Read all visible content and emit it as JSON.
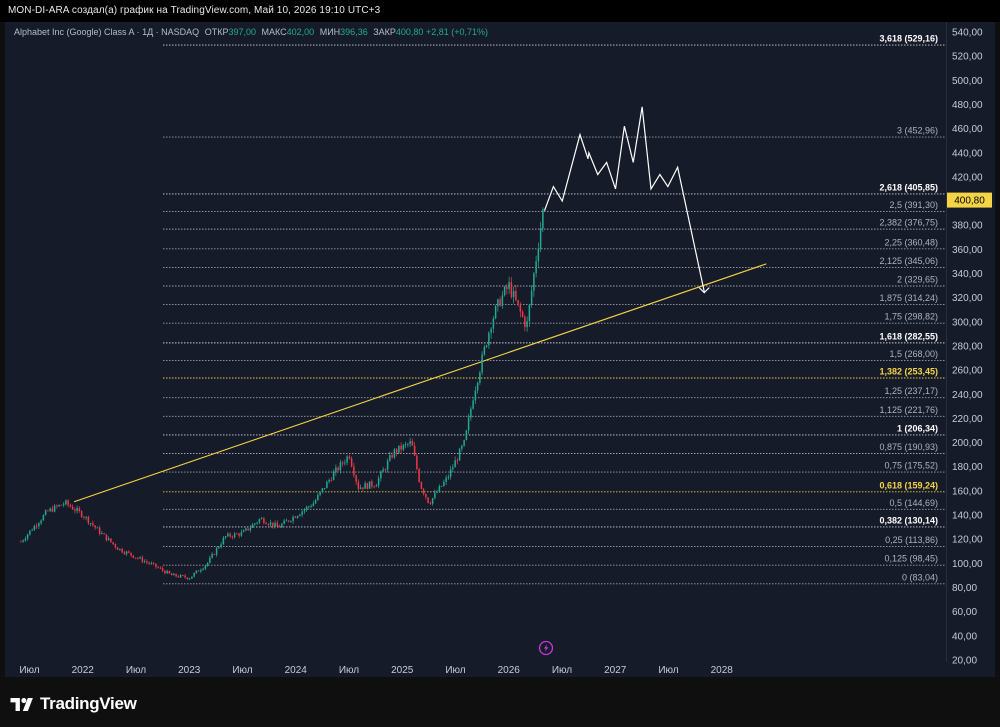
{
  "header": {
    "caption": "MON-DI-ARA создал(а) график на TradingView.com, Май 10, 2026 19:10 UTC+3"
  },
  "symbol": {
    "name": "Alphabet Inc (Google) Class A · 1Д · NASDAQ",
    "open_label": "ОТКР",
    "open": "397,00",
    "high_label": "МАКС",
    "high": "402,00",
    "low_label": "МИН",
    "low": "396,36",
    "close_label": "ЗАКР",
    "close": "400,80",
    "change": "+2,81 (+0,71%)"
  },
  "brand": {
    "name": "TradingView"
  },
  "colors": {
    "up": "#22ab94",
    "down": "#f23645",
    "trend": "#f5d547",
    "fib_white": "#ffffff",
    "fib_gold": "#f5d547",
    "price_tag": "#f5d547"
  },
  "chart_data": {
    "type": "candlestick",
    "y_scale": "linear",
    "ylim": [
      20,
      545
    ],
    "x_ticks": [
      "Июл",
      "2022",
      "Июл",
      "2023",
      "Июл",
      "2024",
      "Июл",
      "2025",
      "Июл",
      "2026",
      "Июл",
      "2027",
      "Июл",
      "2028"
    ],
    "y_ticks": [
      "540,00",
      "520,00",
      "500,00",
      "480,00",
      "460,00",
      "440,00",
      "420,00",
      "400,00",
      "380,00",
      "360,00",
      "340,00",
      "320,00",
      "300,00",
      "280,00",
      "260,00",
      "240,00",
      "220,00",
      "200,00",
      "180,00",
      "160,00",
      "140,00",
      "120,00",
      "100,00",
      "80,00",
      "60,00",
      "40,00",
      "20,00"
    ],
    "last_price": "400,80",
    "price_anchors": [
      [
        "2021-06",
        118
      ],
      [
        "2021-09",
        143
      ],
      [
        "2021-11",
        150
      ],
      [
        "2022-01",
        140
      ],
      [
        "2022-03",
        125
      ],
      [
        "2022-05",
        112
      ],
      [
        "2022-07",
        105
      ],
      [
        "2022-09",
        98
      ],
      [
        "2022-11",
        90
      ],
      [
        "2023-01",
        88
      ],
      [
        "2023-03",
        100
      ],
      [
        "2023-05",
        122
      ],
      [
        "2023-07",
        125
      ],
      [
        "2023-09",
        137
      ],
      [
        "2023-11",
        130
      ],
      [
        "2024-01",
        140
      ],
      [
        "2024-03",
        150
      ],
      [
        "2024-05",
        172
      ],
      [
        "2024-07",
        190
      ],
      [
        "2024-08",
        163
      ],
      [
        "2024-10",
        166
      ],
      [
        "2024-12",
        192
      ],
      [
        "2025-02",
        200
      ],
      [
        "2025-03",
        165
      ],
      [
        "2025-04",
        150
      ],
      [
        "2025-06",
        170
      ],
      [
        "2025-08",
        200
      ],
      [
        "2025-09",
        240
      ],
      [
        "2025-11",
        300
      ],
      [
        "2025-12",
        318
      ],
      [
        "2026-01",
        330
      ],
      [
        "2026-02",
        312
      ],
      [
        "2026-03",
        296
      ],
      [
        "2026-04",
        350
      ],
      [
        "2026-05",
        400.8
      ]
    ],
    "trendline": {
      "from": [
        "2021-12",
        151
      ],
      "to": [
        "2028-06",
        348
      ]
    },
    "projection": [
      [
        "2026-05",
        392
      ],
      [
        "2026-06",
        412
      ],
      [
        "2026-07",
        400
      ],
      [
        "2026-09",
        455
      ],
      [
        "2026-09",
        435
      ],
      [
        "2026-10",
        440
      ],
      [
        "2026-11",
        422
      ],
      [
        "2026-12",
        432
      ],
      [
        "2027-01",
        410
      ],
      [
        "2027-02",
        462
      ],
      [
        "2027-03",
        432
      ],
      [
        "2027-04",
        478
      ],
      [
        "2027-05",
        410
      ],
      [
        "2027-06",
        422
      ],
      [
        "2027-06",
        412
      ],
      [
        "2027-08",
        428
      ],
      [
        "2027-11",
        325
      ]
    ],
    "fib_levels": [
      {
        "label": "3,618 (529,16)",
        "price": 529.16,
        "style": "strong"
      },
      {
        "label": "3 (452,96)",
        "price": 452.96,
        "style": "dim"
      },
      {
        "label": "2,618 (405,85)",
        "price": 405.85,
        "style": "strong"
      },
      {
        "label": "2,5 (391,30)",
        "price": 391.3,
        "style": "dim"
      },
      {
        "label": "2,382 (376,75)",
        "price": 376.75,
        "style": "dim"
      },
      {
        "label": "2,25 (360,48)",
        "price": 360.48,
        "style": "dim"
      },
      {
        "label": "2,125 (345,06)",
        "price": 345.06,
        "style": "dim"
      },
      {
        "label": "2 (329,65)",
        "price": 329.65,
        "style": "dim"
      },
      {
        "label": "1,875 (314,24)",
        "price": 314.24,
        "style": "dim"
      },
      {
        "label": "1,75 (298,82)",
        "price": 298.82,
        "style": "dim"
      },
      {
        "label": "1,618 (282,55)",
        "price": 282.55,
        "style": "strong"
      },
      {
        "label": "1,5 (268,00)",
        "price": 268.0,
        "style": "dim"
      },
      {
        "label": "1,382 (253,45)",
        "price": 253.45,
        "style": "gold"
      },
      {
        "label": "1,25 (237,17)",
        "price": 237.17,
        "style": "dim"
      },
      {
        "label": "1,125 (221,76)",
        "price": 221.76,
        "style": "dim"
      },
      {
        "label": "1 (206,34)",
        "price": 206.34,
        "style": "strong"
      },
      {
        "label": "0,875 (190,93)",
        "price": 190.93,
        "style": "dim"
      },
      {
        "label": "0,75 (175,52)",
        "price": 175.52,
        "style": "dim"
      },
      {
        "label": "0,618 (159,24)",
        "price": 159.24,
        "style": "gold"
      },
      {
        "label": "0,5 (144,69)",
        "price": 144.69,
        "style": "dim"
      },
      {
        "label": "0,382 (130,14)",
        "price": 130.14,
        "style": "strong"
      },
      {
        "label": "0,25 (113,86)",
        "price": 113.86,
        "style": "dim"
      },
      {
        "label": "0,125 (98,45)",
        "price": 98.45,
        "style": "dim"
      },
      {
        "label": "0 (83,04)",
        "price": 83.04,
        "style": "dim"
      }
    ]
  }
}
